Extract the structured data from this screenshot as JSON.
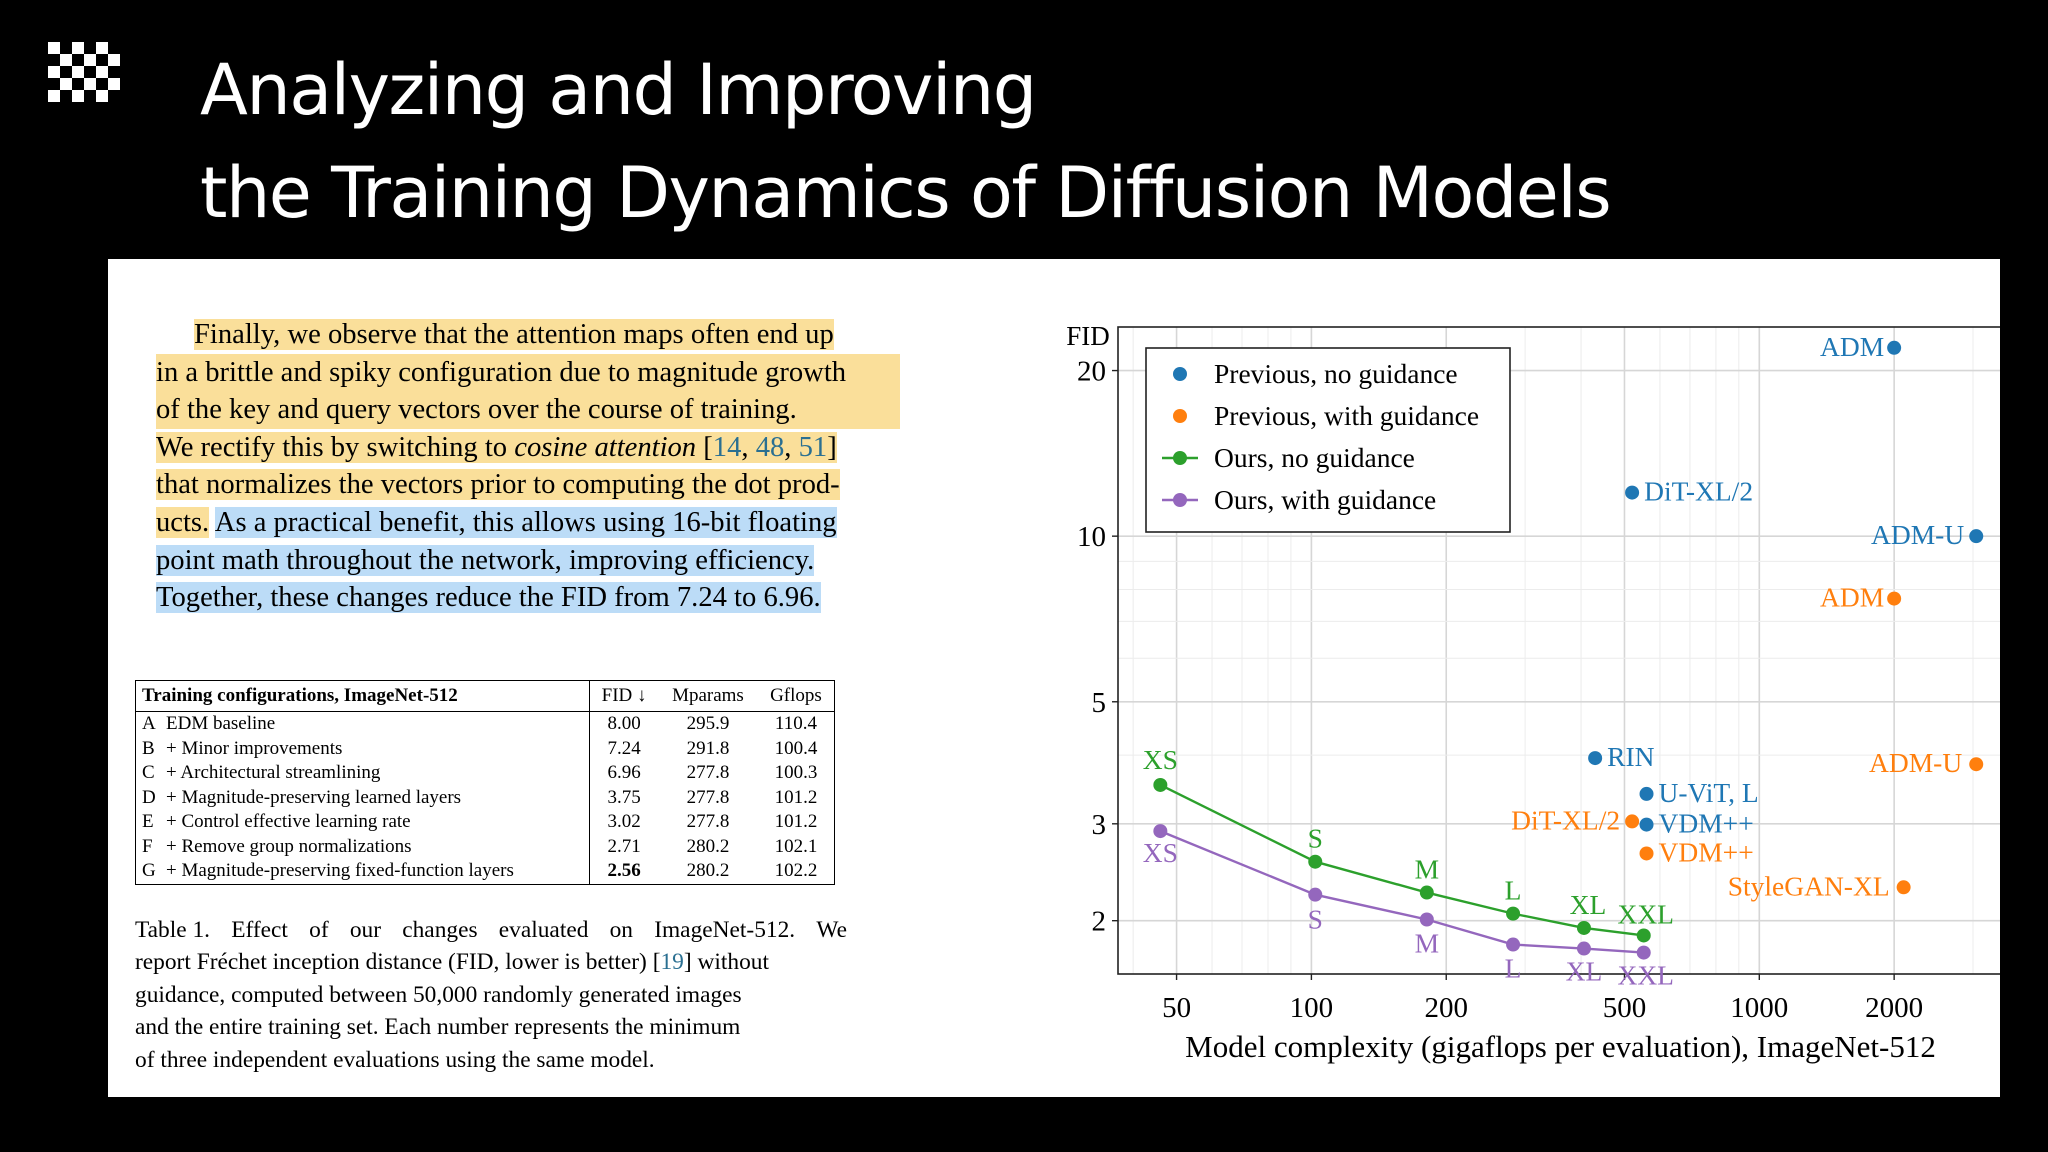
{
  "slide": {
    "title_line1": "Analyzing and Improving",
    "title_line2": "the Training Dynamics of Diffusion Models"
  },
  "paragraph": {
    "lines": [
      [
        "Finally, we observe that the attention maps often end up"
      ],
      [
        "in a brittle and spiky configuration due to magnitude growth"
      ],
      [
        "of the key and query vectors over the course of training."
      ],
      [
        "We rectify this by switching to",
        "cosine attention",
        "[",
        "14",
        ",",
        "48",
        ",",
        "51",
        "]"
      ],
      [
        "that normalizes the vectors prior to computing the dot prod-"
      ],
      [
        "ucts.",
        "As a practical benefit, this allows using 16-bit floating"
      ],
      [
        "point math throughout the network, improving efficiency."
      ],
      [
        "Together, these changes reduce the FID from 7.24 to 6.96."
      ]
    ]
  },
  "table": {
    "header": [
      "Training configurations, ImageNet-512",
      "FID ↓",
      "Mparams",
      "Gflops"
    ],
    "rows": [
      [
        "A",
        "EDM baseline",
        "8.00",
        "295.9",
        "110.4"
      ],
      [
        "B",
        "+ Minor improvements",
        "7.24",
        "291.8",
        "100.4"
      ],
      [
        "C",
        "+ Architectural streamlining",
        "6.96",
        "277.8",
        "100.3"
      ],
      [
        "D",
        "+ Magnitude-preserving learned layers",
        "3.75",
        "277.8",
        "101.2"
      ],
      [
        "E",
        "+ Control effective learning rate",
        "3.02",
        "277.8",
        "101.2"
      ],
      [
        "F",
        "+ Remove group normalizations",
        "2.71",
        "280.2",
        "102.1"
      ],
      [
        "G",
        "+ Magnitude-preserving fixed-function layers",
        "2.56",
        "280.2",
        "102.2"
      ]
    ]
  },
  "caption": {
    "lines": [
      [
        "Table 1.",
        "Effect",
        "of",
        "our",
        "changes",
        "evaluated",
        "on",
        "ImageNet-512.",
        "We"
      ],
      [
        "report Fréchet inception distance (FID, lower is better)",
        "[",
        "19",
        "]",
        "without"
      ],
      [
        "guidance, computed between 50,000 randomly generated images"
      ],
      [
        "and the entire training set. Each number represents the minimum"
      ],
      [
        "of three independent evaluations using the same model."
      ]
    ]
  },
  "colors": {
    "previous_no_guidance": "#1f77b4",
    "previous_with_guidance": "#ff7f0e",
    "ours_no_guidance": "#2ca02c",
    "ours_with_guidance": "#9467bd",
    "highlight_yellow": "#fadf9a",
    "highlight_blue": "#bcdcf7"
  },
  "chart_data": {
    "type": "scatter",
    "xscale": "log",
    "yscale": "log",
    "xlabel": "Model complexity (gigaflops per evaluation), ImageNet-512",
    "ylabel": "FID",
    "xlim": [
      37,
      3500
    ],
    "ylim": [
      1.6,
      24
    ],
    "xticks": [
      50,
      100,
      200,
      500,
      1000,
      2000
    ],
    "yticks": [
      2,
      3,
      5,
      10,
      20
    ],
    "grid": true,
    "legend_position": "top-left",
    "series": [
      {
        "name": "Previous, no guidance",
        "color_key": "previous_no_guidance",
        "connected": false,
        "points": [
          {
            "label": "ADM",
            "x": 2000,
            "y": 22
          },
          {
            "label": "DiT-XL/2",
            "x": 520,
            "y": 12.0
          },
          {
            "label": "ADM-U",
            "x": 3050,
            "y": 10.0
          },
          {
            "label": "RIN",
            "x": 430,
            "y": 3.95
          },
          {
            "label": "U-ViT, L",
            "x": 560,
            "y": 3.4
          },
          {
            "label": "VDM++",
            "x": 560,
            "y": 2.99
          }
        ]
      },
      {
        "name": "Previous, with guidance",
        "color_key": "previous_with_guidance",
        "connected": false,
        "points": [
          {
            "label": "ADM",
            "x": 2000,
            "y": 7.7
          },
          {
            "label": "ADM-U",
            "x": 3050,
            "y": 3.85
          },
          {
            "label": "DiT-XL/2",
            "x": 520,
            "y": 3.03
          },
          {
            "label": "VDM++",
            "x": 560,
            "y": 2.65
          },
          {
            "label": "StyleGAN-XL",
            "x": 2100,
            "y": 2.3
          }
        ]
      },
      {
        "name": "Ours, no guidance",
        "color_key": "ours_no_guidance",
        "connected": true,
        "points": [
          {
            "label": "XS",
            "x": 46,
            "y": 3.53
          },
          {
            "label": "S",
            "x": 102,
            "y": 2.56
          },
          {
            "label": "M",
            "x": 181,
            "y": 2.25
          },
          {
            "label": "L",
            "x": 282,
            "y": 2.06
          },
          {
            "label": "XL",
            "x": 406,
            "y": 1.94
          },
          {
            "label": "XXL",
            "x": 552,
            "y": 1.88
          }
        ]
      },
      {
        "name": "Ours, with guidance",
        "color_key": "ours_with_guidance",
        "connected": true,
        "points": [
          {
            "label": "XS",
            "x": 46,
            "y": 2.91
          },
          {
            "label": "S",
            "x": 102,
            "y": 2.23
          },
          {
            "label": "M",
            "x": 181,
            "y": 2.01
          },
          {
            "label": "L",
            "x": 282,
            "y": 1.81
          },
          {
            "label": "XL",
            "x": 406,
            "y": 1.78
          },
          {
            "label": "XXL",
            "x": 552,
            "y": 1.75
          }
        ]
      }
    ]
  }
}
